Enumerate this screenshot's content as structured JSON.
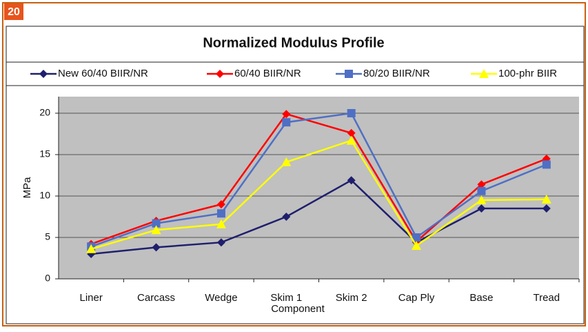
{
  "badge": "20",
  "chart_data": {
    "type": "line",
    "title": "Normalized Modulus Profile",
    "x_label": "Component",
    "y_label": "MPa",
    "categories": [
      "Liner",
      "Carcass",
      "Wedge",
      "Skim 1",
      "Skim 2",
      "Cap Ply",
      "Base",
      "Tread"
    ],
    "series": [
      {
        "name": "New 60/40 BIIR/NR",
        "color": "#1f1f6e",
        "marker": "diamond",
        "values": [
          3.0,
          3.8,
          4.4,
          7.5,
          11.9,
          4.4,
          8.5,
          8.5
        ]
      },
      {
        "name": "60/40 BIIR/NR",
        "color": "#ff0000",
        "marker": "diamond",
        "values": [
          4.2,
          7.0,
          9.0,
          19.9,
          17.6,
          4.5,
          11.4,
          14.5
        ]
      },
      {
        "name": "80/20 BIIR/NR",
        "color": "#4f6fc4",
        "marker": "square",
        "values": [
          3.9,
          6.7,
          7.9,
          18.9,
          20.0,
          5.0,
          10.6,
          13.8
        ]
      },
      {
        "name": "100-phr BIIR",
        "color": "#ffff00",
        "marker": "triangle",
        "values": [
          3.6,
          5.9,
          6.6,
          14.1,
          16.7,
          4.0,
          9.5,
          9.6
        ]
      }
    ],
    "ylim": [
      0,
      22
    ],
    "yticks": [
      0,
      5,
      10,
      15,
      20
    ],
    "grid": true,
    "legend": "top"
  }
}
